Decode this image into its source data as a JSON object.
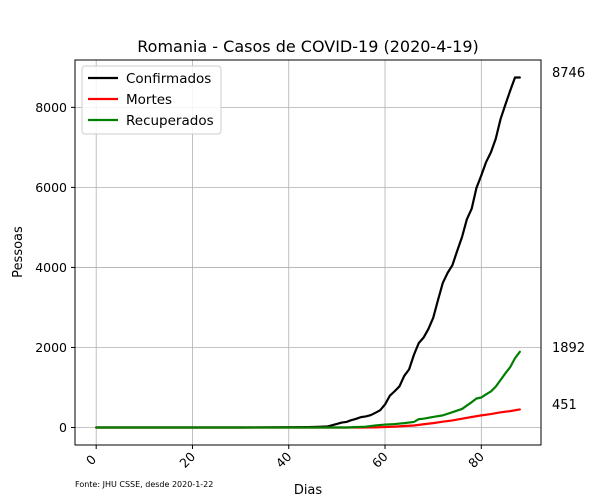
{
  "chart_data": {
    "type": "line",
    "title": "Romania - Casos de COVID-19 (2020-4-19)",
    "xlabel": "Dias",
    "ylabel": "Pessoas",
    "xlim": [
      -4.4,
      92.4
    ],
    "ylim": [
      -437,
      9183
    ],
    "x_ticks": [
      0,
      20,
      40,
      60,
      80
    ],
    "y_ticks": [
      0,
      2000,
      4000,
      6000,
      8000
    ],
    "grid": true,
    "legend": "top-left",
    "source": "Fonte: JHU CSSE, desde 2020-1-22",
    "end_labels": [
      "8746",
      "1892",
      "451"
    ],
    "series": [
      {
        "name": "Confirmados",
        "color": "#000000",
        "x": [
          0,
          30,
          36,
          40,
          44,
          46,
          48,
          50,
          51,
          52,
          53,
          54,
          55,
          56,
          57,
          58,
          59,
          60,
          61,
          62,
          63,
          64,
          65,
          66,
          67,
          68,
          69,
          70,
          71,
          72,
          73,
          74,
          75,
          76,
          77,
          78,
          79,
          80,
          81,
          82,
          83,
          84,
          85,
          86,
          87,
          88
        ],
        "y": [
          0,
          0,
          3,
          6,
          9,
          15,
          25,
          89,
          123,
          139,
          184,
          217,
          260,
          277,
          308,
          367,
          433,
          576,
          794,
          906,
          1029,
          1292,
          1452,
          1815,
          2109,
          2245,
          2460,
          2738,
          3183,
          3613,
          3864,
          4057,
          4417,
          4761,
          5202,
          5467,
          5990,
          6300,
          6633,
          6879,
          7216,
          7707,
          8067,
          8418,
          8746,
          8746
        ]
      },
      {
        "name": "Mortes",
        "color": "#ff0000",
        "x": [
          0,
          55,
          58,
          60,
          62,
          64,
          66,
          68,
          70,
          72,
          74,
          76,
          78,
          80,
          82,
          84,
          86,
          88
        ],
        "y": [
          0,
          0,
          3,
          11,
          23,
          37,
          50,
          82,
          110,
          146,
          176,
          220,
          263,
          303,
          336,
          380,
          409,
          451
        ]
      },
      {
        "name": "Recuperados",
        "color": "#008000",
        "x": [
          0,
          52,
          56,
          58,
          60,
          62,
          64,
          66,
          67,
          68,
          70,
          72,
          74,
          76,
          78,
          79,
          80,
          81,
          82,
          83,
          84,
          85,
          86,
          87,
          88
        ],
        "y": [
          0,
          0,
          20,
          52,
          73,
          86,
          110,
          140,
          208,
          220,
          265,
          303,
          382,
          464,
          633,
          725,
          750,
          829,
          900,
          1021,
          1187,
          1354,
          1508,
          1730,
          1892
        ]
      }
    ]
  }
}
